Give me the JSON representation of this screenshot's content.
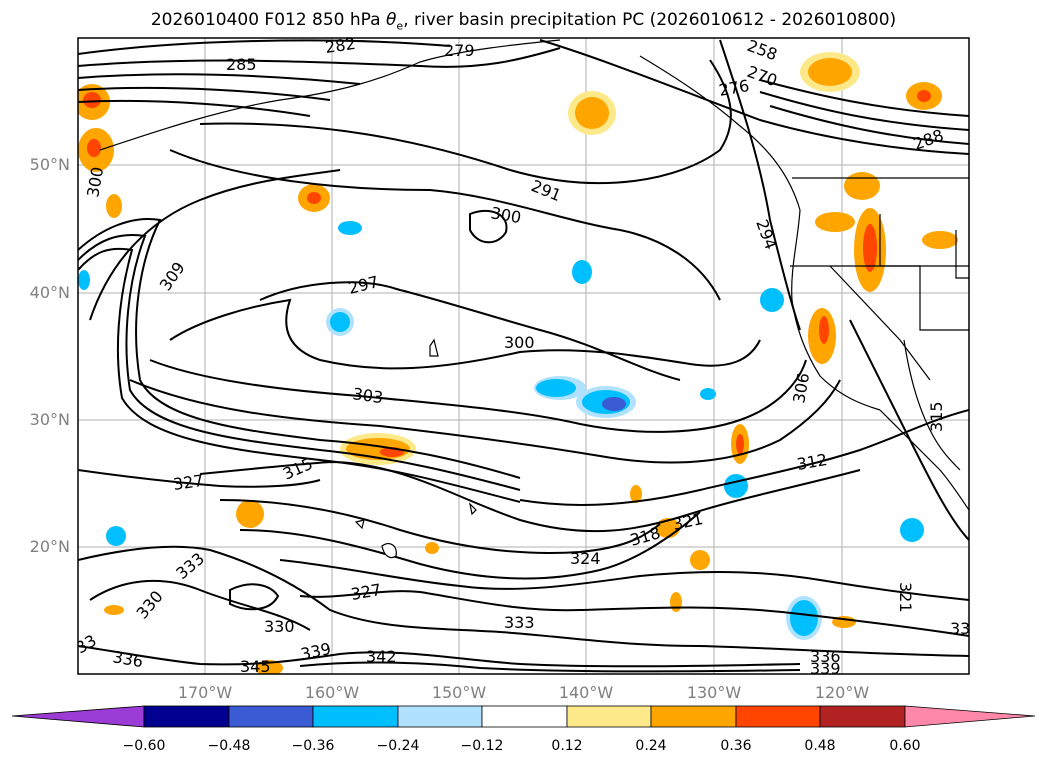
{
  "title_main": "2026010400 F012 850 hPa ",
  "title_symbol": "θ",
  "title_sub": "e",
  "title_rest": ", river basin precipitation PC (2026010612 - 2026010800)",
  "map": {
    "projection": "cylindrical",
    "lon_range": [
      -180,
      -110
    ],
    "lat_range": [
      10,
      60
    ],
    "gridlines": true,
    "lat_labels": [
      "20°N",
      "30°N",
      "40°N",
      "50°N"
    ],
    "lon_labels": [
      "170°W",
      "160°W",
      "150°W",
      "140°W",
      "130°W",
      "120°W"
    ],
    "contour_variable": "850 hPa equivalent potential temperature",
    "contour_labels": [
      "282",
      "279",
      "285",
      "258",
      "270",
      "276",
      "291",
      "300",
      "294",
      "309",
      "297",
      "300",
      "303",
      "306",
      "312",
      "315",
      "327",
      "315",
      "318",
      "321",
      "324",
      "333",
      "330",
      "327",
      "330",
      "336",
      "345",
      "339",
      "342",
      "333",
      "336",
      "339",
      "321",
      "33",
      "33",
      "300",
      "288"
    ]
  },
  "colorbar": {
    "ticks": [
      "−0.60",
      "−0.48",
      "−0.36",
      "−0.24",
      "−0.12",
      "0.12",
      "0.24",
      "0.36",
      "0.48",
      "0.60"
    ],
    "colors": [
      "#9b3cd6",
      "#01008f",
      "#3a5bd4",
      "#00bfff",
      "#b0e2ff",
      "#ffffff",
      "#fde98a",
      "#ffa500",
      "#ff4500",
      "#b22222",
      "#ff88aa"
    ],
    "extend": "both"
  }
}
